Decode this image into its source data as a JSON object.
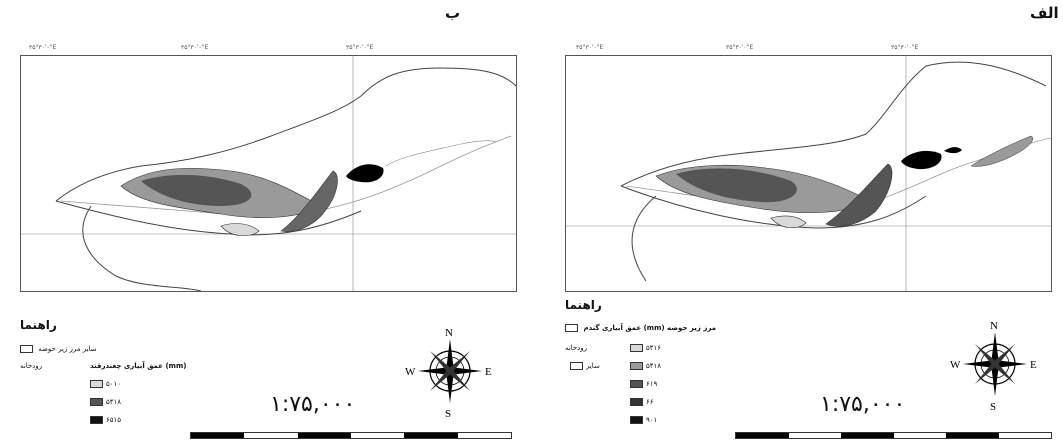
{
  "panels": {
    "right_label": "الف",
    "left_label": "ب"
  },
  "left_map": {
    "legend_title": "راهنما",
    "row1": "ساير  مرز زير حوضه",
    "row2": "رودخانه",
    "crop_title": "عمق آبياری چغندرقند (mm)",
    "classes": [
      "۵۰۱۰",
      "۵۴۱۸",
      "۶۵۱۵"
    ],
    "scale": "۱:۷۵,۰۰۰",
    "compass": {
      "n": "N",
      "s": "S",
      "e": "E",
      "w": "W"
    }
  },
  "right_map": {
    "legend_title": "راهنما",
    "crop_title": "عمق آبياری گندم (mm)  مرز زير حوضه",
    "row2": "رودخانه",
    "row3": "ساير",
    "classes": [
      "۵۴۱۶",
      "۵۴۱۸",
      "۶۱۹",
      "۶۶",
      "۹۰۱"
    ],
    "scale": "۱:۷۵,۰۰۰",
    "compass": {
      "n": "N",
      "s": "S",
      "e": "E",
      "w": "W"
    }
  },
  "colors": {
    "class1": "#d9d9d9",
    "class2": "#9a9a9a",
    "class3": "#555555",
    "class4": "#333333",
    "class5": "#111111"
  }
}
